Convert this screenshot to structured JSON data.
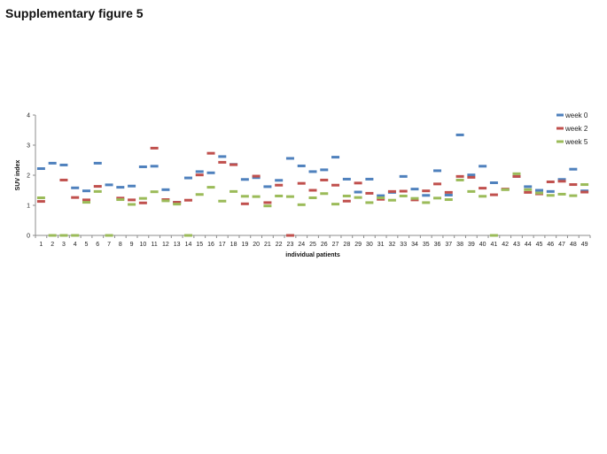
{
  "figure": {
    "title": "Supplementary figure 5"
  },
  "chart_data": {
    "type": "scatter",
    "marker": "dash",
    "xlabel": "individual patients",
    "ylabel": "SUV index",
    "ylim": [
      0,
      4
    ],
    "yticks": [
      "0",
      "1",
      "2",
      "3",
      "4"
    ],
    "grid": false,
    "legend_position": "top-right",
    "categories": [
      "1",
      "2",
      "3",
      "4",
      "5",
      "6",
      "7",
      "8",
      "9",
      "10",
      "11",
      "12",
      "13",
      "14",
      "15",
      "16",
      "17",
      "18",
      "19",
      "20",
      "21",
      "22",
      "23",
      "24",
      "25",
      "26",
      "27",
      "28",
      "29",
      "30",
      "31",
      "32",
      "33",
      "34",
      "35",
      "36",
      "37",
      "38",
      "39",
      "40",
      "41",
      "42",
      "43",
      "44",
      "45",
      "46",
      "47",
      "48",
      "49"
    ],
    "series": [
      {
        "name": "week 0",
        "color": "#4f81bd",
        "values": [
          2.22,
          2.4,
          2.34,
          1.58,
          1.48,
          2.4,
          1.68,
          1.6,
          1.64,
          2.28,
          2.3,
          1.52,
          1.1,
          1.91,
          2.12,
          2.08,
          2.62,
          2.36,
          1.86,
          1.92,
          1.62,
          1.83,
          2.56,
          2.31,
          2.12,
          2.18,
          2.6,
          1.87,
          1.44,
          1.87,
          1.32,
          1.43,
          1.96,
          1.54,
          1.33,
          2.15,
          1.34,
          3.34,
          2.01,
          2.3,
          1.75,
          1.53,
          1.96,
          1.62,
          1.5,
          1.46,
          1.86,
          2.2,
          1.48
        ]
      },
      {
        "name": "week 2",
        "color": "#c0504d",
        "values": [
          1.13,
          null,
          1.84,
          1.26,
          1.18,
          1.63,
          null,
          1.24,
          1.18,
          1.08,
          2.9,
          1.19,
          1.1,
          1.17,
          2.01,
          2.73,
          2.43,
          2.35,
          1.05,
          1.97,
          1.09,
          1.67,
          0.0,
          1.73,
          1.5,
          1.84,
          1.67,
          1.14,
          1.74,
          1.4,
          1.2,
          1.46,
          1.47,
          1.18,
          1.48,
          1.71,
          1.43,
          1.96,
          1.93,
          1.57,
          1.35,
          1.54,
          1.96,
          1.43,
          1.38,
          1.78,
          1.8,
          1.69,
          1.44
        ]
      },
      {
        "name": "week 5",
        "color": "#9bbb59",
        "values": [
          1.25,
          0.0,
          0.0,
          0.0,
          1.1,
          1.46,
          0.0,
          1.19,
          1.03,
          1.23,
          1.45,
          1.15,
          1.04,
          0.0,
          1.36,
          1.6,
          1.14,
          1.46,
          1.3,
          1.29,
          0.98,
          1.31,
          1.29,
          1.02,
          1.25,
          1.39,
          1.04,
          1.31,
          1.26,
          1.09,
          1.25,
          1.17,
          1.31,
          1.23,
          1.09,
          1.24,
          1.19,
          1.84,
          1.46,
          1.3,
          0.0,
          1.52,
          2.05,
          1.52,
          1.41,
          1.33,
          1.37,
          1.32,
          1.69
        ]
      }
    ]
  }
}
